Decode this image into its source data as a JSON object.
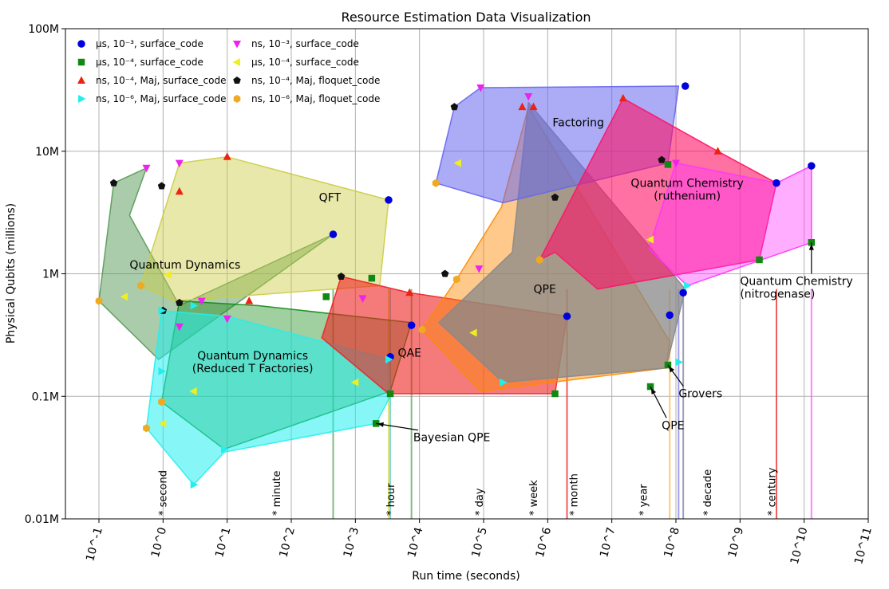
{
  "chart_data": {
    "type": "scatter",
    "title": "Resource Estimation Data Visualization",
    "xlabel": "Run time (seconds)",
    "ylabel": "Physical Qubits (millions)",
    "xscale": "log",
    "yscale": "log",
    "xlim": [
      0.03,
      100000000000
    ],
    "ylim": [
      0.01,
      100
    ],
    "x_ticks": [
      {
        "value": 0.1,
        "label": "10^-1"
      },
      {
        "value": 1,
        "label": "10^0"
      },
      {
        "value": 10,
        "label": "10^1"
      },
      {
        "value": 100,
        "label": "10^2"
      },
      {
        "value": 1000,
        "label": "10^3"
      },
      {
        "value": 10000,
        "label": "10^4"
      },
      {
        "value": 100000,
        "label": "10^5"
      },
      {
        "value": 1000000,
        "label": "10^6"
      },
      {
        "value": 10000000,
        "label": "10^7"
      },
      {
        "value": 100000000,
        "label": "10^8"
      },
      {
        "value": 1000000000,
        "label": "10^9"
      },
      {
        "value": 10000000000,
        "label": "10^10"
      },
      {
        "value": 100000000000,
        "label": "10^11"
      }
    ],
    "y_ticks": [
      {
        "value": 0.01,
        "label": "0.01M"
      },
      {
        "value": 0.1,
        "label": "0.1M"
      },
      {
        "value": 1,
        "label": "1M"
      },
      {
        "value": 10,
        "label": "10M"
      },
      {
        "value": 100,
        "label": "100M"
      }
    ],
    "time_markers": [
      {
        "value": 1,
        "label": "* second"
      },
      {
        "value": 60,
        "label": "* minute"
      },
      {
        "value": 3600,
        "label": "* hour"
      },
      {
        "value": 86400,
        "label": "* day"
      },
      {
        "value": 604800,
        "label": "* week"
      },
      {
        "value": 2592000,
        "label": "* month"
      },
      {
        "value": 31536000,
        "label": "* year"
      },
      {
        "value": 315360000,
        "label": "* decade"
      },
      {
        "value": 3153600000,
        "label": "* century"
      }
    ],
    "legend": {
      "placement": "top-left",
      "entries": [
        {
          "label": "μs, 10⁻³, surface_code",
          "marker": "circle",
          "color": "#0000dd"
        },
        {
          "label": "ns, 10⁻³, surface_code",
          "marker": "triangle-down",
          "color": "#ee22ee"
        },
        {
          "label": "μs, 10⁻⁴, surface_code",
          "marker": "square",
          "color": "#118811"
        },
        {
          "label": "μs, 10⁻⁴, surface_code",
          "marker": "triangle-left",
          "color": "#eeee22"
        },
        {
          "label": "ns, 10⁻⁴, Maj, surface_code",
          "marker": "triangle-up",
          "color": "#ee2211"
        },
        {
          "label": "ns, 10⁻⁴, Maj, floquet_code",
          "marker": "pentagon",
          "color": "#111111"
        },
        {
          "label": "ns, 10⁻⁶, Maj, surface_code",
          "marker": "triangle-right",
          "color": "#22eeee"
        },
        {
          "label": "ns, 10⁻⁶, Maj, floquet_code",
          "marker": "hexagon",
          "color": "#eeaa22"
        }
      ]
    },
    "regions": [
      {
        "name": "Quantum Dynamics",
        "label_at": [
          2.2,
          1.1
        ],
        "fill": "#559955",
        "opacity": 0.5,
        "polygon": [
          [
            0.1,
            0.6
          ],
          [
            0.17,
            5.5
          ],
          [
            0.55,
            7.3
          ],
          [
            0.3,
            3.0
          ],
          [
            1.8,
            0.55
          ],
          [
            450,
            2.1
          ],
          [
            0.85,
            0.2
          ],
          [
            0.1,
            0.6
          ]
        ]
      },
      {
        "name": "QFT",
        "label_at": [
          400,
          3.9
        ],
        "fill": "#cccc44",
        "opacity": 0.45,
        "polygon": [
          [
            0.45,
            0.8
          ],
          [
            1.8,
            8.0
          ],
          [
            10,
            9.0
          ],
          [
            3300,
            4.0
          ],
          [
            2400,
            0.8
          ],
          [
            1.5,
            0.6
          ],
          [
            0.45,
            0.8
          ]
        ]
      },
      {
        "name": "Quantum Dynamics\n(Reduced T Factories)",
        "label_at": [
          25,
          0.2
        ],
        "fill": "#118811",
        "opacity": 0.4,
        "polygon": [
          [
            0.95,
            0.09
          ],
          [
            1.8,
            0.6
          ],
          [
            30,
            0.55
          ],
          [
            7500,
            0.4
          ],
          [
            3500,
            0.11
          ],
          [
            9,
            0.037
          ],
          [
            0.95,
            0.09
          ]
        ]
      },
      {
        "name": "Quantum Dynamics Cyan",
        "fill": "#22eeee",
        "opacity": 0.55,
        "polygon": [
          [
            0.55,
            0.055
          ],
          [
            0.95,
            0.5
          ],
          [
            10,
            0.45
          ],
          [
            3300,
            0.2
          ],
          [
            3500,
            0.1
          ],
          [
            2100,
            0.06
          ],
          [
            9,
            0.035
          ],
          [
            3,
            0.019
          ],
          [
            0.55,
            0.055
          ]
        ]
      },
      {
        "name": "QAE",
        "label_at": [
          7000,
          0.21
        ],
        "fill": "#ee2222",
        "opacity": 0.6,
        "polygon": [
          [
            300,
            0.3
          ],
          [
            600,
            0.95
          ],
          [
            7000,
            0.7
          ],
          [
            2000000,
            0.45
          ],
          [
            1300000,
            0.105
          ],
          [
            3300,
            0.105
          ],
          [
            300,
            0.3
          ]
        ]
      },
      {
        "name": "QPE",
        "label_at": [
          900000,
          0.7
        ],
        "fill": "#ff8800",
        "opacity": 0.45,
        "polygon": [
          [
            11000,
            0.35
          ],
          [
            38000,
            0.9
          ],
          [
            190000,
            3.5
          ],
          [
            500000,
            23
          ],
          [
            80000000,
            0.28
          ],
          [
            70000000,
            0.17
          ],
          [
            90000,
            0.11
          ],
          [
            11000,
            0.35
          ]
        ]
      },
      {
        "name": "QPE Gray",
        "fill": "#888888",
        "opacity": 0.75,
        "polygon": [
          [
            20000,
            0.4
          ],
          [
            280000,
            1.5
          ],
          [
            500000,
            25
          ],
          [
            140000000,
            0.75
          ],
          [
            70000000,
            0.17
          ],
          [
            200000,
            0.13
          ],
          [
            20000,
            0.4
          ]
        ]
      },
      {
        "name": "Factoring",
        "label_at": [
          3000000,
          16
        ],
        "fill": "#6666ee",
        "opacity": 0.55,
        "polygon": [
          [
            18000,
            5.5
          ],
          [
            35000,
            23
          ],
          [
            90000,
            33
          ],
          [
            110000000,
            34
          ],
          [
            75000000,
            8.0
          ],
          [
            200000,
            3.8
          ],
          [
            18000,
            5.5
          ]
        ]
      },
      {
        "name": "Quantum Chemistry\n(ruthenium)",
        "label_at": [
          150000000,
          5.1
        ],
        "fill": "#ff1166",
        "opacity": 0.6,
        "polygon": [
          [
            750000,
            1.3
          ],
          [
            15000000,
            27
          ],
          [
            450000000,
            10
          ],
          [
            3700000000,
            5.5
          ],
          [
            2000000000,
            1.3
          ],
          [
            6000000,
            0.75
          ],
          [
            1300000,
            1.5
          ],
          [
            750000,
            1.3
          ]
        ]
      },
      {
        "name": "Quantum Chemistry Magenta",
        "fill": "#ff33ff",
        "opacity": 0.4,
        "polygon": [
          [
            38000000,
            1.6
          ],
          [
            100000000,
            8.0
          ],
          [
            3700000000,
            5.5
          ],
          [
            13000000000,
            7.6
          ],
          [
            13000000000,
            1.8
          ],
          [
            150000000,
            0.8
          ],
          [
            38000000,
            1.6
          ]
        ]
      }
    ],
    "points": [
      {
        "x": 140000000,
        "y": 34,
        "marker": "circle",
        "color": "#0000dd"
      },
      {
        "x": 130000000,
        "y": 0.7,
        "marker": "circle",
        "color": "#0000dd"
      },
      {
        "x": 13000000000,
        "y": 7.6,
        "marker": "circle",
        "color": "#0000dd"
      },
      {
        "x": 3700000000,
        "y": 5.5,
        "marker": "circle",
        "color": "#0000dd"
      },
      {
        "x": 3300,
        "y": 4.0,
        "marker": "circle",
        "color": "#0000dd"
      },
      {
        "x": 450,
        "y": 2.1,
        "marker": "circle",
        "color": "#0000dd"
      },
      {
        "x": 7500,
        "y": 0.38,
        "marker": "circle",
        "color": "#0000dd"
      },
      {
        "x": 3500,
        "y": 0.21,
        "marker": "circle",
        "color": "#0000dd"
      },
      {
        "x": 2000000,
        "y": 0.45,
        "marker": "circle",
        "color": "#0000dd"
      },
      {
        "x": 80000000,
        "y": 0.46,
        "marker": "circle",
        "color": "#0000dd"
      },
      {
        "x": 0.55,
        "y": 7.3,
        "marker": "triangle-down",
        "color": "#ee22ee"
      },
      {
        "x": 1.8,
        "y": 8.0,
        "marker": "triangle-down",
        "color": "#ee22ee"
      },
      {
        "x": 90000,
        "y": 33,
        "marker": "triangle-down",
        "color": "#ee22ee"
      },
      {
        "x": 500000,
        "y": 28,
        "marker": "triangle-down",
        "color": "#ee22ee"
      },
      {
        "x": 100000000,
        "y": 8.0,
        "marker": "triangle-down",
        "color": "#ee22ee"
      },
      {
        "x": 1300,
        "y": 0.63,
        "marker": "triangle-down",
        "color": "#ee22ee"
      },
      {
        "x": 4,
        "y": 0.6,
        "marker": "triangle-down",
        "color": "#ee22ee"
      },
      {
        "x": 1.8,
        "y": 0.37,
        "marker": "triangle-down",
        "color": "#ee22ee"
      },
      {
        "x": 85000,
        "y": 1.1,
        "marker": "triangle-down",
        "color": "#ee22ee"
      },
      {
        "x": 10,
        "y": 0.43,
        "marker": "triangle-down",
        "color": "#ee22ee"
      },
      {
        "x": 1800,
        "y": 0.92,
        "marker": "square",
        "color": "#118811"
      },
      {
        "x": 350,
        "y": 0.65,
        "marker": "square",
        "color": "#118811"
      },
      {
        "x": 3500,
        "y": 0.105,
        "marker": "square",
        "color": "#118811"
      },
      {
        "x": 2100,
        "y": 0.06,
        "marker": "square",
        "color": "#118811"
      },
      {
        "x": 1300000,
        "y": 0.105,
        "marker": "square",
        "color": "#118811"
      },
      {
        "x": 40000000,
        "y": 0.12,
        "marker": "square",
        "color": "#118811"
      },
      {
        "x": 75000000,
        "y": 0.18,
        "marker": "square",
        "color": "#118811"
      },
      {
        "x": 75000000,
        "y": 7.8,
        "marker": "square",
        "color": "#118811"
      },
      {
        "x": 2000000000,
        "y": 1.3,
        "marker": "square",
        "color": "#118811"
      },
      {
        "x": 13000000000,
        "y": 1.8,
        "marker": "square",
        "color": "#118811"
      },
      {
        "x": 0.25,
        "y": 0.65,
        "marker": "triangle-left",
        "color": "#eeee22"
      },
      {
        "x": 1.2,
        "y": 0.98,
        "marker": "triangle-left",
        "color": "#eeee22"
      },
      {
        "x": 40000,
        "y": 8.0,
        "marker": "triangle-left",
        "color": "#eeee22"
      },
      {
        "x": 1,
        "y": 0.06,
        "marker": "triangle-left",
        "color": "#eeee22"
      },
      {
        "x": 3,
        "y": 0.11,
        "marker": "triangle-left",
        "color": "#eeee22"
      },
      {
        "x": 1000,
        "y": 0.13,
        "marker": "triangle-left",
        "color": "#eeee22"
      },
      {
        "x": 70000,
        "y": 0.33,
        "marker": "triangle-left",
        "color": "#eeee22"
      },
      {
        "x": 40000000,
        "y": 1.9,
        "marker": "triangle-left",
        "color": "#eeee22"
      },
      {
        "x": 10,
        "y": 9.0,
        "marker": "triangle-up",
        "color": "#ee2211"
      },
      {
        "x": 1.8,
        "y": 4.7,
        "marker": "triangle-up",
        "color": "#ee2211"
      },
      {
        "x": 22,
        "y": 0.6,
        "marker": "triangle-up",
        "color": "#ee2211"
      },
      {
        "x": 7000,
        "y": 0.7,
        "marker": "triangle-up",
        "color": "#ee2211"
      },
      {
        "x": 400000,
        "y": 23,
        "marker": "triangle-up",
        "color": "#ee2211"
      },
      {
        "x": 600000,
        "y": 23,
        "marker": "triangle-up",
        "color": "#ee2211"
      },
      {
        "x": 15000000,
        "y": 27,
        "marker": "triangle-up",
        "color": "#ee2211"
      },
      {
        "x": 450000000,
        "y": 10,
        "marker": "triangle-up",
        "color": "#ee2211"
      },
      {
        "x": 0.17,
        "y": 5.5,
        "marker": "pentagon",
        "color": "#111111"
      },
      {
        "x": 0.95,
        "y": 5.2,
        "marker": "pentagon",
        "color": "#111111"
      },
      {
        "x": 1.8,
        "y": 0.58,
        "marker": "pentagon",
        "color": "#111111"
      },
      {
        "x": 1,
        "y": 0.5,
        "marker": "pentagon",
        "color": "#111111"
      },
      {
        "x": 600,
        "y": 0.95,
        "marker": "pentagon",
        "color": "#111111"
      },
      {
        "x": 25000,
        "y": 1.0,
        "marker": "pentagon",
        "color": "#111111"
      },
      {
        "x": 35000,
        "y": 23,
        "marker": "pentagon",
        "color": "#111111"
      },
      {
        "x": 60000000,
        "y": 8.5,
        "marker": "pentagon",
        "color": "#111111"
      },
      {
        "x": 1300000,
        "y": 4.2,
        "marker": "pentagon",
        "color": "#111111"
      },
      {
        "x": 0.95,
        "y": 0.5,
        "marker": "triangle-right",
        "color": "#22eeee"
      },
      {
        "x": 0.95,
        "y": 0.16,
        "marker": "triangle-right",
        "color": "#22eeee"
      },
      {
        "x": 3,
        "y": 0.019,
        "marker": "triangle-right",
        "color": "#22eeee"
      },
      {
        "x": 9,
        "y": 0.037,
        "marker": "triangle-right",
        "color": "#22eeee"
      },
      {
        "x": 3,
        "y": 0.55,
        "marker": "triangle-right",
        "color": "#22eeee"
      },
      {
        "x": 3300,
        "y": 0.2,
        "marker": "triangle-right",
        "color": "#22eeee"
      },
      {
        "x": 200000,
        "y": 0.13,
        "marker": "triangle-right",
        "color": "#22eeee"
      },
      {
        "x": 150000000,
        "y": 0.8,
        "marker": "triangle-right",
        "color": "#22eeee"
      },
      {
        "x": 110000000,
        "y": 0.19,
        "marker": "triangle-right",
        "color": "#22eeee"
      },
      {
        "x": 0.1,
        "y": 0.6,
        "marker": "hexagon",
        "color": "#eeaa22"
      },
      {
        "x": 0.45,
        "y": 0.8,
        "marker": "hexagon",
        "color": "#eeaa22"
      },
      {
        "x": 0.55,
        "y": 0.055,
        "marker": "hexagon",
        "color": "#eeaa22"
      },
      {
        "x": 0.95,
        "y": 0.09,
        "marker": "hexagon",
        "color": "#eeaa22"
      },
      {
        "x": 18000,
        "y": 5.5,
        "marker": "hexagon",
        "color": "#eeaa22"
      },
      {
        "x": 11000,
        "y": 0.35,
        "marker": "hexagon",
        "color": "#eeaa22"
      },
      {
        "x": 750000,
        "y": 1.3,
        "marker": "hexagon",
        "color": "#eeaa22"
      },
      {
        "x": 38000,
        "y": 0.9,
        "marker": "hexagon",
        "color": "#eeaa22"
      }
    ],
    "drop_lines": [
      {
        "x": 450,
        "color": "#66aa66"
      },
      {
        "x": 3300,
        "color": "#dddd55"
      },
      {
        "x": 3500,
        "color": "#66cccc"
      },
      {
        "x": 7500,
        "color": "#66aa66"
      },
      {
        "x": 2000000,
        "color": "#ee3333"
      },
      {
        "x": 80000000,
        "color": "#ffbb55"
      },
      {
        "x": 110000000,
        "color": "#8888ee"
      },
      {
        "x": 130000000,
        "color": "#8888aa"
      },
      {
        "x": 3700000000,
        "color": "#ee3333"
      },
      {
        "x": 13000000000,
        "color": "#ff66ff"
      }
    ],
    "annotations": [
      {
        "text": "Bayesian QPE",
        "x": 2100,
        "y": 0.06,
        "text_x": 8000,
        "text_y": 0.043
      },
      {
        "text": "QPE",
        "x": 40000000,
        "y": 0.12,
        "text_x": 60000000,
        "text_y": 0.054
      },
      {
        "text": "Grovers",
        "x": 75000000,
        "y": 0.18,
        "text_x": 110000000,
        "text_y": 0.098
      },
      {
        "text": "Quantum Chemistry\n(nitrogenase)",
        "x": 13000000000,
        "y": 1.8,
        "text_x": 1000000000,
        "text_y": 0.72
      }
    ]
  }
}
